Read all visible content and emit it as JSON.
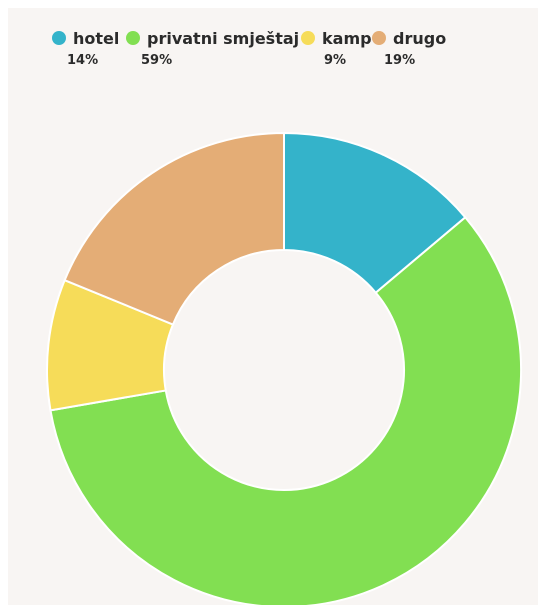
{
  "chart_data": {
    "type": "pie",
    "style": "donut",
    "categories": [
      "hotel",
      "privatni smještaj",
      "kamp",
      "drugo"
    ],
    "values": [
      14,
      59,
      9,
      19
    ],
    "value_labels": [
      "14%",
      "59%",
      "9%",
      "19%"
    ],
    "colors": [
      "#34b3ca",
      "#82df52",
      "#f6dc59",
      "#e4ad76"
    ],
    "legend_position": "top",
    "title": ""
  }
}
